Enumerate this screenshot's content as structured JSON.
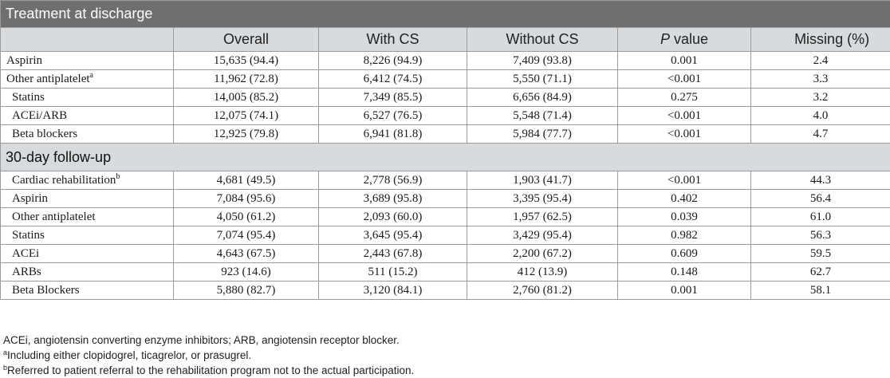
{
  "table": {
    "section1_title": "Treatment at discharge",
    "section2_title": "30-day follow-up",
    "columns": {
      "overall": "Overall",
      "with_cs": "With CS",
      "without_cs": "Without CS",
      "p_letter": "P",
      "p_word": " value",
      "missing": "Missing (%)"
    },
    "discharge_rows": [
      {
        "label": "Aspirin",
        "sup": "",
        "overall": "15,635 (94.4)",
        "with_cs": "8,226 (94.9)",
        "without_cs": "7,409 (93.8)",
        "p": "0.001",
        "missing": "2.4"
      },
      {
        "label": "Other antiplatelet",
        "sup": "a",
        "overall": "11,962 (72.8)",
        "with_cs": "6,412 (74.5)",
        "without_cs": "5,550 (71.1)",
        "p": "<0.001",
        "missing": "3.3"
      },
      {
        "label": "Statins",
        "sup": "",
        "overall": "14,005 (85.2)",
        "with_cs": "7,349 (85.5)",
        "without_cs": "6,656 (84.9)",
        "p": "0.275",
        "missing": "3.2"
      },
      {
        "label": "ACEi/ARB",
        "sup": "",
        "overall": "12,075 (74.1)",
        "with_cs": "6,527 (76.5)",
        "without_cs": "5,548 (71.4)",
        "p": "<0.001",
        "missing": "4.0"
      },
      {
        "label": "Beta blockers",
        "sup": "",
        "overall": "12,925 (79.8)",
        "with_cs": "6,941 (81.8)",
        "without_cs": "5,984 (77.7)",
        "p": "<0.001",
        "missing": "4.7"
      }
    ],
    "followup_rows": [
      {
        "label": "Cardiac rehabilitation",
        "sup": "b",
        "overall": "4,681 (49.5)",
        "with_cs": "2,778 (56.9)",
        "without_cs": "1,903 (41.7)",
        "p": "<0.001",
        "missing": "44.3"
      },
      {
        "label": "Aspirin",
        "sup": "",
        "overall": "7,084 (95.6)",
        "with_cs": "3,689 (95.8)",
        "without_cs": "3,395 (95.4)",
        "p": "0.402",
        "missing": "56.4"
      },
      {
        "label": "Other antiplatelet",
        "sup": "",
        "overall": "4,050 (61.2)",
        "with_cs": "2,093 (60.0)",
        "without_cs": "1,957 (62.5)",
        "p": "0.039",
        "missing": "61.0"
      },
      {
        "label": "Statins",
        "sup": "",
        "overall": "7,074 (95.4)",
        "with_cs": "3,645 (95.4)",
        "without_cs": "3,429 (95.4)",
        "p": "0.982",
        "missing": "56.3"
      },
      {
        "label": "ACEi",
        "sup": "",
        "overall": "4,643 (67.5)",
        "with_cs": "2,443 (67.8)",
        "without_cs": "2,200 (67.2)",
        "p": "0.609",
        "missing": "59.5"
      },
      {
        "label": "ARBs",
        "sup": "",
        "overall": "923 (14.6)",
        "with_cs": "511 (15.2)",
        "without_cs": "412 (13.9)",
        "p": "0.148",
        "missing": "62.7"
      },
      {
        "label": "Beta Blockers",
        "sup": "",
        "overall": "5,880 (82.7)",
        "with_cs": "3,120 (84.1)",
        "without_cs": "2,760 (81.2)",
        "p": "0.001",
        "missing": "58.1"
      }
    ]
  },
  "footnotes": {
    "abbrev": "ACEi, angiotensin converting enzyme inhibitors; ARB, angiotensin receptor blocker.",
    "a_mark": "a",
    "a_text": "Including either clopidogrel, ticagrelor, or prasugrel.",
    "b_mark": "b",
    "b_text": "Referred to patient referral to the rehabilitation program not to the actual participation."
  },
  "colors": {
    "title_band": "#6f6f6f",
    "header_band": "#d8dbdd",
    "border": "#9a9a9a"
  }
}
